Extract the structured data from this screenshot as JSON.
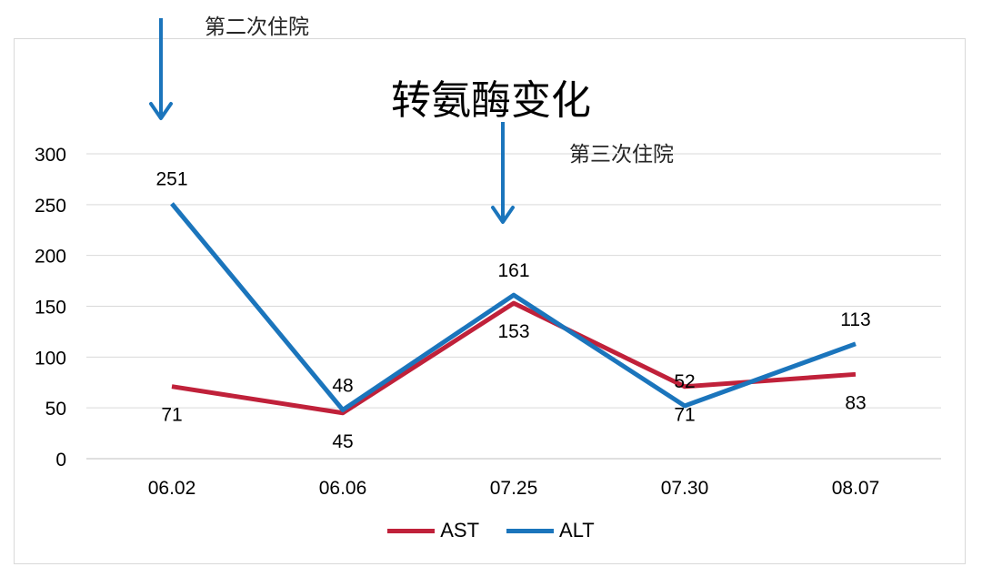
{
  "chart_data": {
    "type": "line",
    "title": "转氨酶变化",
    "categories": [
      "06.02",
      "06.06",
      "07.25",
      "07.30",
      "08.07"
    ],
    "series": [
      {
        "name": "AST",
        "color": "#c0213a",
        "values": [
          71,
          45,
          153,
          71,
          83
        ]
      },
      {
        "name": "ALT",
        "color": "#1b75bc",
        "values": [
          251,
          48,
          161,
          52,
          113
        ]
      }
    ],
    "ylim": [
      0,
      300
    ],
    "yticks": [
      0,
      50,
      100,
      150,
      200,
      250,
      300
    ],
    "grid": true,
    "legend_position": "bottom",
    "annotations": [
      {
        "text": "第二次住院",
        "category": "06.02"
      },
      {
        "text": "第三次住院",
        "category": "07.25"
      }
    ]
  }
}
